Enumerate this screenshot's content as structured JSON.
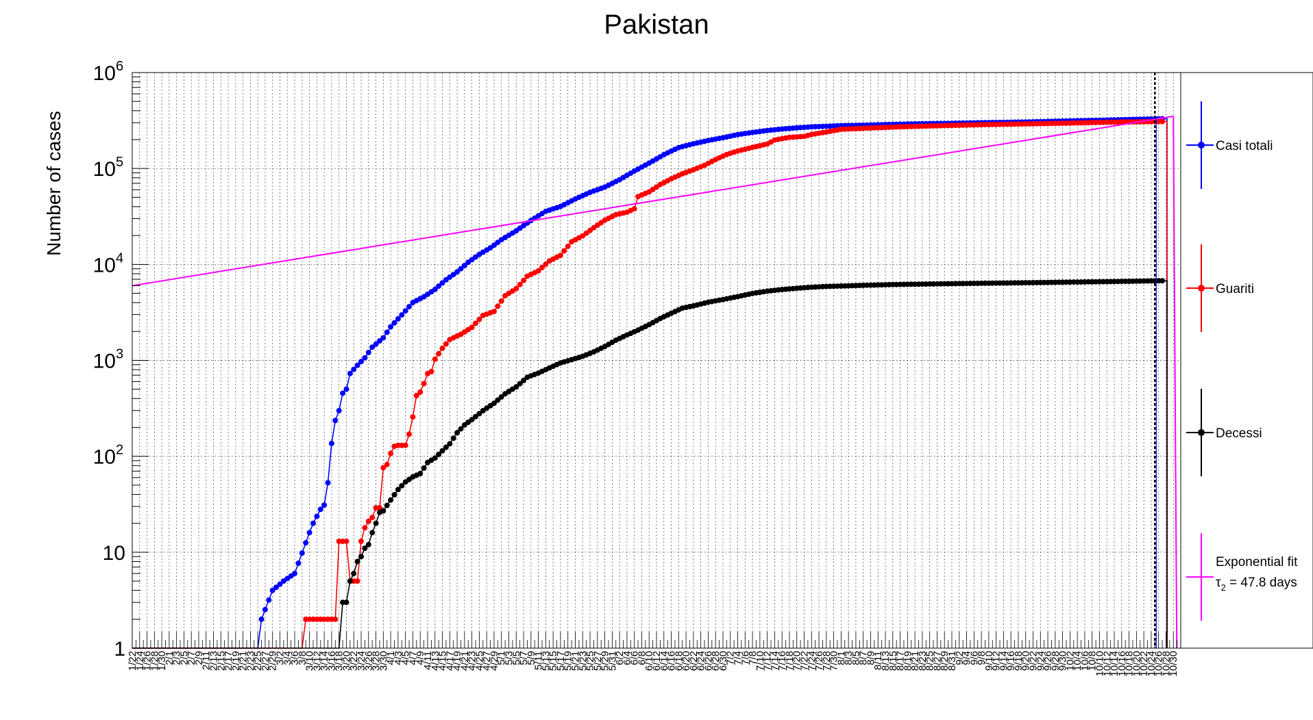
{
  "chart_data": {
    "type": "line",
    "title": "Pakistan",
    "ylabel": "Number of cases",
    "xlabel": "",
    "yscale": "log",
    "ylim": [
      1,
      1000000
    ],
    "grid": true,
    "legend_position": "right",
    "y_ticks": [
      {
        "value": 1,
        "label": "1"
      },
      {
        "value": 10,
        "label": "10"
      },
      {
        "value": 100,
        "label": "10",
        "exp": "2"
      },
      {
        "value": 1000,
        "label": "10",
        "exp": "3"
      },
      {
        "value": 10000,
        "label": "10",
        "exp": "4"
      },
      {
        "value": 100000,
        "label": "10",
        "exp": "5"
      },
      {
        "value": 1000000,
        "label": "10",
        "exp": "6"
      }
    ],
    "x_start_date": "2020-01-22",
    "x_end_date": "2020-11-01",
    "x_tick_labels": [
      "1/22",
      "1/24",
      "1/26",
      "1/28",
      "1/30",
      "2/1",
      "2/3",
      "2/5",
      "2/7",
      "2/9",
      "2/11",
      "2/13",
      "2/15",
      "2/17",
      "2/19",
      "2/21",
      "2/23",
      "2/25",
      "2/27",
      "2/29",
      "3/2",
      "3/4",
      "3/6",
      "3/8",
      "3/10",
      "3/12",
      "3/14",
      "3/16",
      "3/18",
      "3/20",
      "3/22",
      "3/24",
      "3/26",
      "3/28",
      "3/30",
      "4/1",
      "4/3",
      "4/5",
      "4/7",
      "4/9",
      "4/11",
      "4/13",
      "4/15",
      "4/17",
      "4/19",
      "4/21",
      "4/23",
      "4/25",
      "4/27",
      "4/29",
      "5/1",
      "5/3",
      "5/5",
      "5/7",
      "5/9",
      "5/11",
      "5/13",
      "5/15",
      "5/17",
      "5/19",
      "5/21",
      "5/23",
      "5/25",
      "5/27",
      "5/29",
      "5/31",
      "6/2",
      "6/4",
      "6/6",
      "6/8",
      "6/10",
      "6/12",
      "6/14",
      "6/16",
      "6/18",
      "6/20",
      "6/22",
      "6/24",
      "6/26",
      "6/28",
      "6/30",
      "7/2",
      "7/4",
      "7/6",
      "7/8",
      "7/10",
      "7/12",
      "7/14",
      "7/16",
      "7/18",
      "7/20",
      "7/22",
      "7/24",
      "7/26",
      "7/28",
      "7/30",
      "8/1",
      "8/3",
      "8/5",
      "8/7",
      "8/9",
      "8/11",
      "8/13",
      "8/15",
      "8/17",
      "8/19",
      "8/21",
      "8/23",
      "8/25",
      "8/27",
      "8/29",
      "8/31",
      "9/2",
      "9/4",
      "9/6",
      "9/8",
      "9/10",
      "9/12",
      "9/14",
      "9/16",
      "9/18",
      "9/20",
      "9/22",
      "9/24",
      "9/26",
      "9/28",
      "9/30",
      "10/2",
      "10/4",
      "10/6",
      "10/8",
      "10/10",
      "10/12",
      "10/14",
      "10/16",
      "10/18",
      "10/20",
      "10/22",
      "10/24",
      "10/26",
      "10/28",
      "10/30"
    ],
    "series": [
      {
        "name": "Casi totali",
        "color": "#0000ff",
        "points": [
          [
            "2020-01-22",
            1
          ],
          [
            "2020-02-25",
            1
          ],
          [
            "2020-02-26",
            2
          ],
          [
            "2020-02-29",
            4
          ],
          [
            "2020-03-03",
            5
          ],
          [
            "2020-03-06",
            6
          ],
          [
            "2020-03-10",
            16
          ],
          [
            "2020-03-11",
            20
          ],
          [
            "2020-03-13",
            28
          ],
          [
            "2020-03-14",
            31
          ],
          [
            "2020-03-15",
            53
          ],
          [
            "2020-03-16",
            136
          ],
          [
            "2020-03-17",
            236
          ],
          [
            "2020-03-18",
            299
          ],
          [
            "2020-03-19",
            454
          ],
          [
            "2020-03-20",
            501
          ],
          [
            "2020-03-21",
            730
          ],
          [
            "2020-03-23",
            887
          ],
          [
            "2020-03-25",
            1063
          ],
          [
            "2020-03-27",
            1373
          ],
          [
            "2020-03-30",
            1717
          ],
          [
            "2020-04-01",
            2238
          ],
          [
            "2020-04-03",
            2708
          ],
          [
            "2020-04-05",
            3277
          ],
          [
            "2020-04-07",
            4004
          ],
          [
            "2020-04-10",
            4601
          ],
          [
            "2020-04-13",
            5496
          ],
          [
            "2020-04-16",
            6919
          ],
          [
            "2020-04-19",
            8348
          ],
          [
            "2020-04-22",
            10513
          ],
          [
            "2020-04-25",
            12723
          ],
          [
            "2020-04-28",
            14885
          ],
          [
            "2020-05-01",
            18092
          ],
          [
            "2020-05-05",
            22413
          ],
          [
            "2020-05-09",
            28736
          ],
          [
            "2020-05-13",
            35788
          ],
          [
            "2020-05-17",
            40151
          ],
          [
            "2020-05-21",
            48091
          ],
          [
            "2020-05-25",
            56349
          ],
          [
            "2020-05-29",
            64028
          ],
          [
            "2020-06-02",
            76398
          ],
          [
            "2020-06-06",
            93983
          ],
          [
            "2020-06-10",
            113702
          ],
          [
            "2020-06-14",
            139230
          ],
          [
            "2020-06-18",
            165062
          ],
          [
            "2020-06-22",
            181088
          ],
          [
            "2020-06-26",
            195745
          ],
          [
            "2020-06-30",
            209337
          ],
          [
            "2020-07-04",
            225283
          ],
          [
            "2020-07-08",
            237489
          ],
          [
            "2020-07-12",
            248872
          ],
          [
            "2020-07-16",
            257914
          ],
          [
            "2020-07-20",
            265083
          ],
          [
            "2020-07-24",
            271887
          ],
          [
            "2020-07-28",
            275225
          ],
          [
            "2020-08-01",
            279699
          ],
          [
            "2020-08-08",
            283487
          ],
          [
            "2020-08-15",
            288047
          ],
          [
            "2020-08-22",
            292174
          ],
          [
            "2020-08-31",
            296149
          ],
          [
            "2020-09-10",
            300955
          ],
          [
            "2020-09-20",
            305031
          ],
          [
            "2020-09-30",
            312263
          ],
          [
            "2020-10-10",
            318266
          ],
          [
            "2020-10-20",
            325480
          ],
          [
            "2020-10-27",
            330200
          ]
        ]
      },
      {
        "name": "Guariti",
        "color": "#ff0000",
        "points": [
          [
            "2020-01-22",
            1
          ],
          [
            "2020-03-08",
            1
          ],
          [
            "2020-03-09",
            2
          ],
          [
            "2020-03-17",
            2
          ],
          [
            "2020-03-18",
            13
          ],
          [
            "2020-03-20",
            13
          ],
          [
            "2020-03-21",
            5
          ],
          [
            "2020-03-23",
            5
          ],
          [
            "2020-03-24",
            13
          ],
          [
            "2020-03-25",
            18
          ],
          [
            "2020-03-26",
            21
          ],
          [
            "2020-03-27",
            23
          ],
          [
            "2020-03-28",
            29
          ],
          [
            "2020-03-29",
            29
          ],
          [
            "2020-03-30",
            76
          ],
          [
            "2020-03-31",
            82
          ],
          [
            "2020-04-01",
            107
          ],
          [
            "2020-04-02",
            127
          ],
          [
            "2020-04-03",
            130
          ],
          [
            "2020-04-05",
            130
          ],
          [
            "2020-04-06",
            170
          ],
          [
            "2020-04-07",
            257
          ],
          [
            "2020-04-08",
            429
          ],
          [
            "2020-04-09",
            467
          ],
          [
            "2020-04-10",
            572
          ],
          [
            "2020-04-11",
            727
          ],
          [
            "2020-04-12",
            762
          ],
          [
            "2020-04-13",
            1028
          ],
          [
            "2020-04-15",
            1336
          ],
          [
            "2020-04-17",
            1645
          ],
          [
            "2020-04-20",
            1868
          ],
          [
            "2020-04-23",
            2212
          ],
          [
            "2020-04-26",
            2936
          ],
          [
            "2020-04-29",
            3233
          ],
          [
            "2020-05-02",
            4715
          ],
          [
            "2020-05-05",
            5590
          ],
          [
            "2020-05-08",
            7528
          ],
          [
            "2020-05-11",
            8566
          ],
          [
            "2020-05-14",
            10880
          ],
          [
            "2020-05-17",
            12431
          ],
          [
            "2020-05-20",
            17198
          ],
          [
            "2020-05-23",
            19835
          ],
          [
            "2020-05-26",
            24131
          ],
          [
            "2020-05-29",
            28923
          ],
          [
            "2020-06-01",
            33013
          ],
          [
            "2020-06-04",
            35000
          ],
          [
            "2020-06-06",
            38000
          ],
          [
            "2020-06-07",
            51000
          ],
          [
            "2020-06-10",
            57000
          ],
          [
            "2020-06-13",
            68000
          ],
          [
            "2020-06-16",
            78000
          ],
          [
            "2020-06-19",
            88000
          ],
          [
            "2020-06-22",
            97000
          ],
          [
            "2020-06-25",
            108000
          ],
          [
            "2020-06-28",
            124000
          ],
          [
            "2020-07-01",
            140000
          ],
          [
            "2020-07-04",
            152000
          ],
          [
            "2020-07-08",
            166000
          ],
          [
            "2020-07-12",
            180000
          ],
          [
            "2020-07-14",
            198000
          ],
          [
            "2020-07-18",
            211000
          ],
          [
            "2020-07-22",
            216000
          ],
          [
            "2020-07-24",
            226000
          ],
          [
            "2020-07-28",
            240000
          ],
          [
            "2020-08-01",
            256000
          ],
          [
            "2020-08-08",
            263000
          ],
          [
            "2020-08-15",
            270000
          ],
          [
            "2020-08-22",
            275000
          ],
          [
            "2020-08-31",
            281000
          ],
          [
            "2020-09-10",
            287000
          ],
          [
            "2020-09-20",
            291000
          ],
          [
            "2020-09-30",
            296000
          ],
          [
            "2020-10-10",
            302000
          ],
          [
            "2020-10-20",
            306000
          ],
          [
            "2020-10-27",
            309000
          ]
        ]
      },
      {
        "name": "Decessi",
        "color": "#000000",
        "points": [
          [
            "2020-01-22",
            1
          ],
          [
            "2020-03-18",
            1
          ],
          [
            "2020-03-19",
            3
          ],
          [
            "2020-03-20",
            3
          ],
          [
            "2020-03-21",
            5
          ],
          [
            "2020-03-22",
            6
          ],
          [
            "2020-03-23",
            8
          ],
          [
            "2020-03-24",
            9
          ],
          [
            "2020-03-25",
            11
          ],
          [
            "2020-03-26",
            12
          ],
          [
            "2020-03-27",
            16
          ],
          [
            "2020-03-28",
            20
          ],
          [
            "2020-03-29",
            26
          ],
          [
            "2020-03-30",
            27
          ],
          [
            "2020-04-01",
            35
          ],
          [
            "2020-04-03",
            45
          ],
          [
            "2020-04-05",
            54
          ],
          [
            "2020-04-07",
            61
          ],
          [
            "2020-04-09",
            66
          ],
          [
            "2020-04-11",
            86
          ],
          [
            "2020-04-13",
            96
          ],
          [
            "2020-04-15",
            114
          ],
          [
            "2020-04-17",
            135
          ],
          [
            "2020-04-19",
            176
          ],
          [
            "2020-04-21",
            212
          ],
          [
            "2020-04-23",
            241
          ],
          [
            "2020-04-26",
            299
          ],
          [
            "2020-04-29",
            357
          ],
          [
            "2020-05-02",
            448
          ],
          [
            "2020-05-05",
            529
          ],
          [
            "2020-05-08",
            667
          ],
          [
            "2020-05-11",
            737
          ],
          [
            "2020-05-14",
            834
          ],
          [
            "2020-05-17",
            939
          ],
          [
            "2020-05-20",
            1017
          ],
          [
            "2020-05-23",
            1101
          ],
          [
            "2020-05-26",
            1225
          ],
          [
            "2020-05-29",
            1395
          ],
          [
            "2020-06-01",
            1621
          ],
          [
            "2020-06-04",
            1838
          ],
          [
            "2020-06-07",
            2067
          ],
          [
            "2020-06-10",
            2356
          ],
          [
            "2020-06-13",
            2729
          ],
          [
            "2020-06-16",
            3093
          ],
          [
            "2020-06-19",
            3501
          ],
          [
            "2020-06-22",
            3695
          ],
          [
            "2020-06-26",
            4035
          ],
          [
            "2020-06-30",
            4304
          ],
          [
            "2020-07-04",
            4619
          ],
          [
            "2020-07-08",
            4983
          ],
          [
            "2020-07-12",
            5266
          ],
          [
            "2020-07-16",
            5475
          ],
          [
            "2020-07-20",
            5639
          ],
          [
            "2020-07-24",
            5787
          ],
          [
            "2020-07-28",
            5892
          ],
          [
            "2020-08-01",
            5951
          ],
          [
            "2020-08-08",
            6068
          ],
          [
            "2020-08-15",
            6162
          ],
          [
            "2020-08-22",
            6228
          ],
          [
            "2020-08-31",
            6298
          ],
          [
            "2020-09-10",
            6373
          ],
          [
            "2020-09-20",
            6437
          ],
          [
            "2020-09-30",
            6520
          ],
          [
            "2020-10-10",
            6601
          ],
          [
            "2020-10-20",
            6692
          ],
          [
            "2020-10-27",
            6759
          ]
        ]
      },
      {
        "name": "Exponential fit",
        "color": "#ff00ff",
        "fit": {
          "x0": "2020-01-22",
          "y0": 6000,
          "x1": "2020-10-30",
          "y1": 350000
        }
      }
    ],
    "legend": [
      {
        "label": "Casi totali",
        "color": "#0000ff"
      },
      {
        "label": "Guariti",
        "color": "#ff0000"
      },
      {
        "label": "Decessi",
        "color": "#000000"
      },
      {
        "label": "Exponential fit",
        "label2_sym": "τ",
        "label2_sub": "2",
        "label2_rest": " = 47.8 days",
        "color": "#ff00ff"
      }
    ],
    "annotations": [
      {
        "type": "vertical-dashed-line",
        "x": "2020-10-25",
        "color": "#000000"
      }
    ]
  }
}
